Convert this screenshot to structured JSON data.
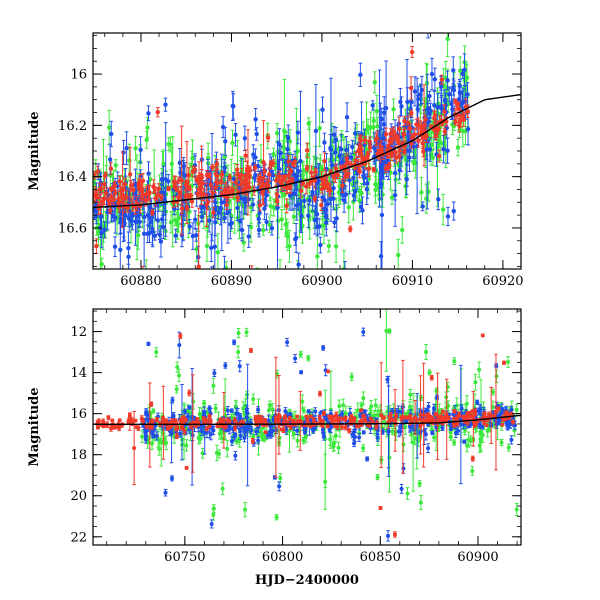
{
  "colors": {
    "green": "#3ce83c",
    "blue": "#1f4fe8",
    "red": "#f03a2a",
    "model": "#000000"
  },
  "chart_data": [
    {
      "type": "scatter",
      "title": "",
      "xlabel": "",
      "ylabel": "Magnitude",
      "xlim": [
        60874.7,
        60922.0
      ],
      "ylim": [
        16.76,
        15.84
      ],
      "y_inverted": true,
      "xticks": [
        60880,
        60890,
        60900,
        60910,
        60920
      ],
      "yticks": [
        16.0,
        16.2,
        16.4,
        16.6
      ],
      "xtick_labels": [
        "60880",
        "60890",
        "60900",
        "60910",
        "60920"
      ],
      "ytick_labels": [
        "16",
        "16.2",
        "16.4",
        "16.6"
      ],
      "error_bars": true,
      "model_curve": {
        "x": [
          60874.7,
          60880,
          60885,
          60890,
          60895,
          60900,
          60905,
          60910,
          60914,
          60918,
          60922
        ],
        "y": [
          16.52,
          16.51,
          16.49,
          16.47,
          16.44,
          16.4,
          16.34,
          16.26,
          16.17,
          16.1,
          16.08
        ]
      },
      "series": [
        {
          "color": "green",
          "trend": [
            [
              60874.7,
              16.5
            ],
            [
              60900,
              16.43
            ],
            [
              60908,
              16.32
            ],
            [
              60913,
              16.17
            ],
            [
              60916.2,
              16.16
            ]
          ],
          "x_range": [
            60874.7,
            60916.2
          ],
          "n": 420,
          "scatter": 0.09,
          "outlier_frac": 0.12,
          "seed": 11
        },
        {
          "color": "blue",
          "trend": [
            [
              60874.7,
              16.52
            ],
            [
              60900,
              16.42
            ],
            [
              60908,
              16.3
            ],
            [
              60913,
              16.1
            ],
            [
              60916.2,
              16.12
            ]
          ],
          "x_range": [
            60874.7,
            60916.2
          ],
          "n": 460,
          "scatter": 0.08,
          "outlier_frac": 0.1,
          "seed": 23
        },
        {
          "color": "red",
          "trend": [
            [
              60874.7,
              16.48
            ],
            [
              60900,
              16.4
            ],
            [
              60908,
              16.28
            ],
            [
              60913,
              16.2
            ],
            [
              60916.2,
              16.15
            ]
          ],
          "x_range": [
            60874.7,
            60916.2
          ],
          "n": 360,
          "scatter": 0.04,
          "outlier_frac": 0.05,
          "seed": 37
        }
      ]
    },
    {
      "type": "scatter",
      "title": "",
      "xlabel": "HJD−2400000",
      "ylabel": "Magnitude",
      "xlim": [
        60703,
        60922
      ],
      "ylim": [
        22.4,
        10.9
      ],
      "y_inverted": true,
      "xticks": [
        60750,
        60800,
        60850,
        60900
      ],
      "yticks": [
        12,
        14,
        16,
        18,
        20,
        22
      ],
      "xtick_labels": [
        "60750",
        "60800",
        "60850",
        "60900"
      ],
      "ytick_labels": [
        "12",
        "14",
        "16",
        "18",
        "20",
        "22"
      ],
      "error_bars": true,
      "model_curve": {
        "x": [
          60703,
          60750,
          60800,
          60850,
          60880,
          60900,
          60922
        ],
        "y": [
          16.52,
          16.52,
          16.51,
          16.49,
          16.45,
          16.3,
          16.08
        ]
      },
      "series": [
        {
          "color": "green",
          "trend": [
            [
              60728,
              16.6
            ],
            [
              60922,
              16.3
            ]
          ],
          "x_range": [
            60728,
            60920
          ],
          "n": 380,
          "scatter": 0.5,
          "outlier_frac": 0.18,
          "seed": 53
        },
        {
          "color": "blue",
          "trend": [
            [
              60728,
              16.6
            ],
            [
              60922,
              16.3
            ]
          ],
          "x_range": [
            60728,
            60920
          ],
          "n": 400,
          "scatter": 0.35,
          "outlier_frac": 0.08,
          "seed": 71
        },
        {
          "color": "red",
          "trend": [
            [
              60705,
              16.52
            ],
            [
              60922,
              16.2
            ]
          ],
          "x_range": [
            60705,
            60918
          ],
          "n": 340,
          "scatter": 0.18,
          "outlier_frac": 0.04,
          "seed": 89
        }
      ]
    }
  ]
}
